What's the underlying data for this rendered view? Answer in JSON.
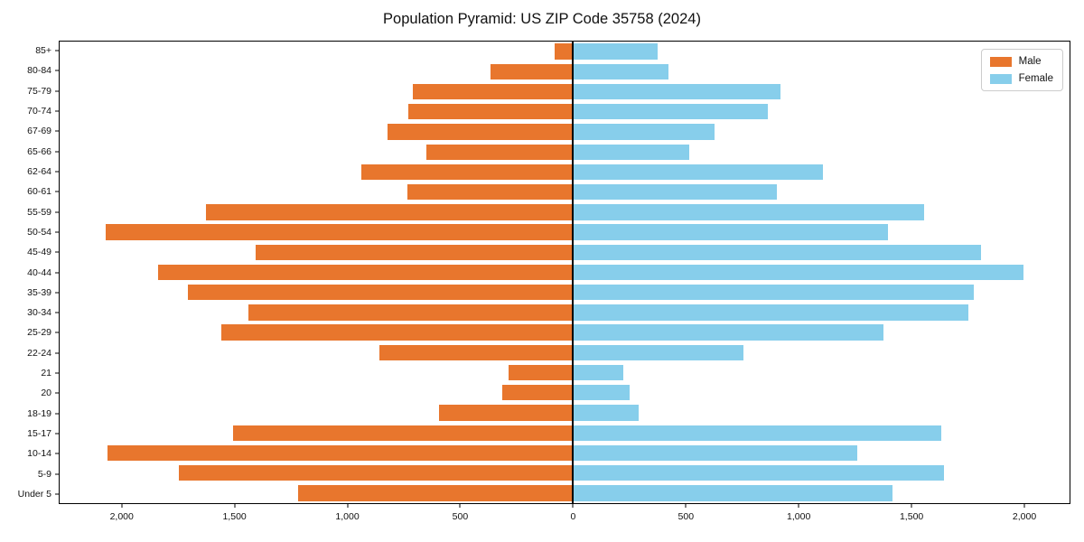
{
  "title": "Population Pyramid: US ZIP Code 35758 (2024)",
  "legend": {
    "male_label": "Male",
    "female_label": "Female"
  },
  "colors": {
    "male": "#e8762d",
    "female": "#87ceeb",
    "axis": "#000000",
    "background": "#ffffff"
  },
  "chart_data": {
    "type": "bar",
    "subtype": "population-pyramid",
    "title": "Population Pyramid: US ZIP Code 35758 (2024)",
    "orientation": "horizontal",
    "grid": false,
    "legend_position": "upper-right",
    "categories_top_to_bottom": [
      "85+",
      "80-84",
      "75-79",
      "70-74",
      "67-69",
      "65-66",
      "62-64",
      "60-61",
      "55-59",
      "50-54",
      "45-49",
      "40-44",
      "35-39",
      "30-34",
      "25-29",
      "22-24",
      "21",
      "20",
      "18-19",
      "15-17",
      "10-14",
      "5-9",
      "Under 5"
    ],
    "series": [
      {
        "name": "Male",
        "side": "left",
        "color": "#e8762d",
        "values": [
          80,
          365,
          710,
          730,
          825,
          650,
          940,
          735,
          1630,
          2075,
          1410,
          1840,
          1710,
          1440,
          1560,
          860,
          285,
          315,
          595,
          1510,
          2065,
          1750,
          1220
        ]
      },
      {
        "name": "Female",
        "side": "right",
        "color": "#87ceeb",
        "values": [
          375,
          425,
          920,
          865,
          630,
          515,
          1110,
          905,
          1560,
          1400,
          1810,
          2000,
          1780,
          1755,
          1380,
          755,
          225,
          250,
          290,
          1635,
          1260,
          1645,
          1420
        ]
      }
    ],
    "xlim": [
      -2279,
      2204
    ],
    "x_ticks": [
      {
        "value": -2000,
        "label": "2,000"
      },
      {
        "value": -1500,
        "label": "1,500"
      },
      {
        "value": -1000,
        "label": "1,000"
      },
      {
        "value": -500,
        "label": "500"
      },
      {
        "value": 0,
        "label": "0"
      },
      {
        "value": 500,
        "label": "500"
      },
      {
        "value": 1000,
        "label": "1,000"
      },
      {
        "value": 1500,
        "label": "1,500"
      },
      {
        "value": 2000,
        "label": "2,000"
      }
    ],
    "bar_height_fraction": 0.78
  }
}
